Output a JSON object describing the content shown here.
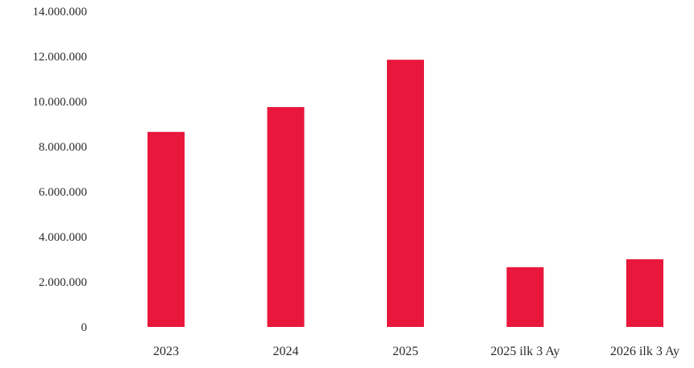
{
  "chart_data": {
    "type": "bar",
    "title": "",
    "xlabel": "",
    "ylabel": "",
    "categories": [
      "2023",
      "2024",
      "2025",
      "2025 ilk 3 Ay",
      "2026 ilk 3 Ay"
    ],
    "values": [
      8650000,
      9750000,
      11850000,
      2650000,
      3000000
    ],
    "ylim": [
      0,
      14000000
    ],
    "yticks": [
      0,
      2000000,
      4000000,
      6000000,
      8000000,
      10000000,
      12000000,
      14000000
    ],
    "ytick_labels": [
      "0",
      "2.000.000",
      "4.000.000",
      "6.000.000",
      "8.000.000",
      "10.000.000",
      "12.000.000",
      "14.000.000"
    ],
    "grid": false,
    "legend": "none",
    "bar_color": "#e8173b"
  }
}
